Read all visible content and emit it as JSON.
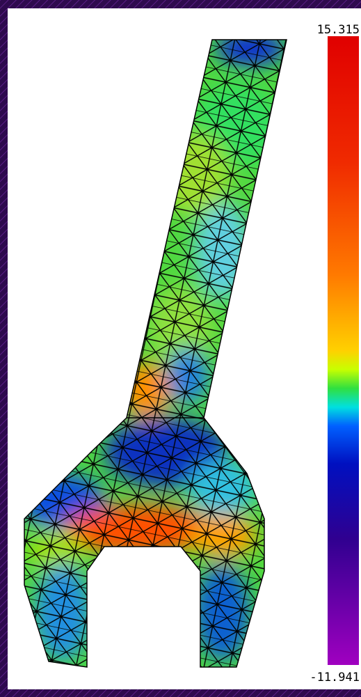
{
  "colorbar": {
    "max": 15.315,
    "min": -11.941
  }
}
